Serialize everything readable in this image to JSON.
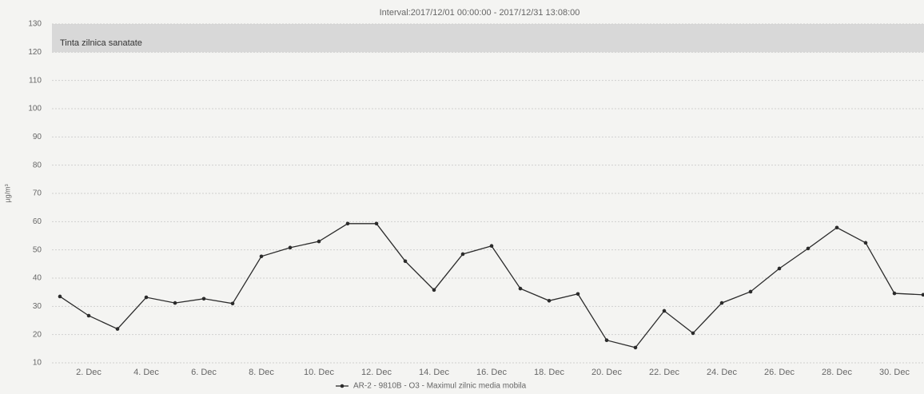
{
  "chart_data": {
    "type": "line",
    "title": "Interval:2017/12/01 00:00:00 - 2017/12/31 13:08:00",
    "y_label": "µg/m³",
    "categories": [
      null,
      "2. Dec",
      null,
      "4. Dec",
      null,
      "6. Dec",
      null,
      "8. Dec",
      null,
      "10. Dec",
      null,
      "12. Dec",
      null,
      "14. Dec",
      null,
      "16. Dec",
      null,
      "18. Dec",
      null,
      "20. Dec",
      null,
      "22. Dec",
      null,
      "24. Dec",
      null,
      "26. Dec",
      null,
      "28. Dec",
      null,
      "30. Dec",
      null
    ],
    "series": [
      {
        "name": "AR-2 - 9810B - O3 - Maximul zilnic media mobila",
        "color": "#2b2b2b",
        "values": [
          33.5,
          26.7,
          22,
          33.2,
          31.2,
          32.7,
          31,
          47.7,
          50.8,
          53,
          59.3,
          59.3,
          46,
          35.8,
          48.5,
          51.4,
          36.3,
          32,
          34.4,
          18,
          15.4,
          28.4,
          20.5,
          31.2,
          35.2,
          43.4,
          50.5,
          57.9,
          52.5,
          34.6,
          34.1
        ]
      }
    ],
    "plot_band": {
      "from": 120,
      "to": 130,
      "label": "Tinta zilnica sanatate",
      "color": "#d8d8d8"
    },
    "ylim": [
      10,
      130
    ],
    "yticks": [
      10,
      20,
      30,
      40,
      50,
      60,
      70,
      80,
      90,
      100,
      110,
      120,
      130
    ],
    "grid": true,
    "legend": "bottom"
  }
}
